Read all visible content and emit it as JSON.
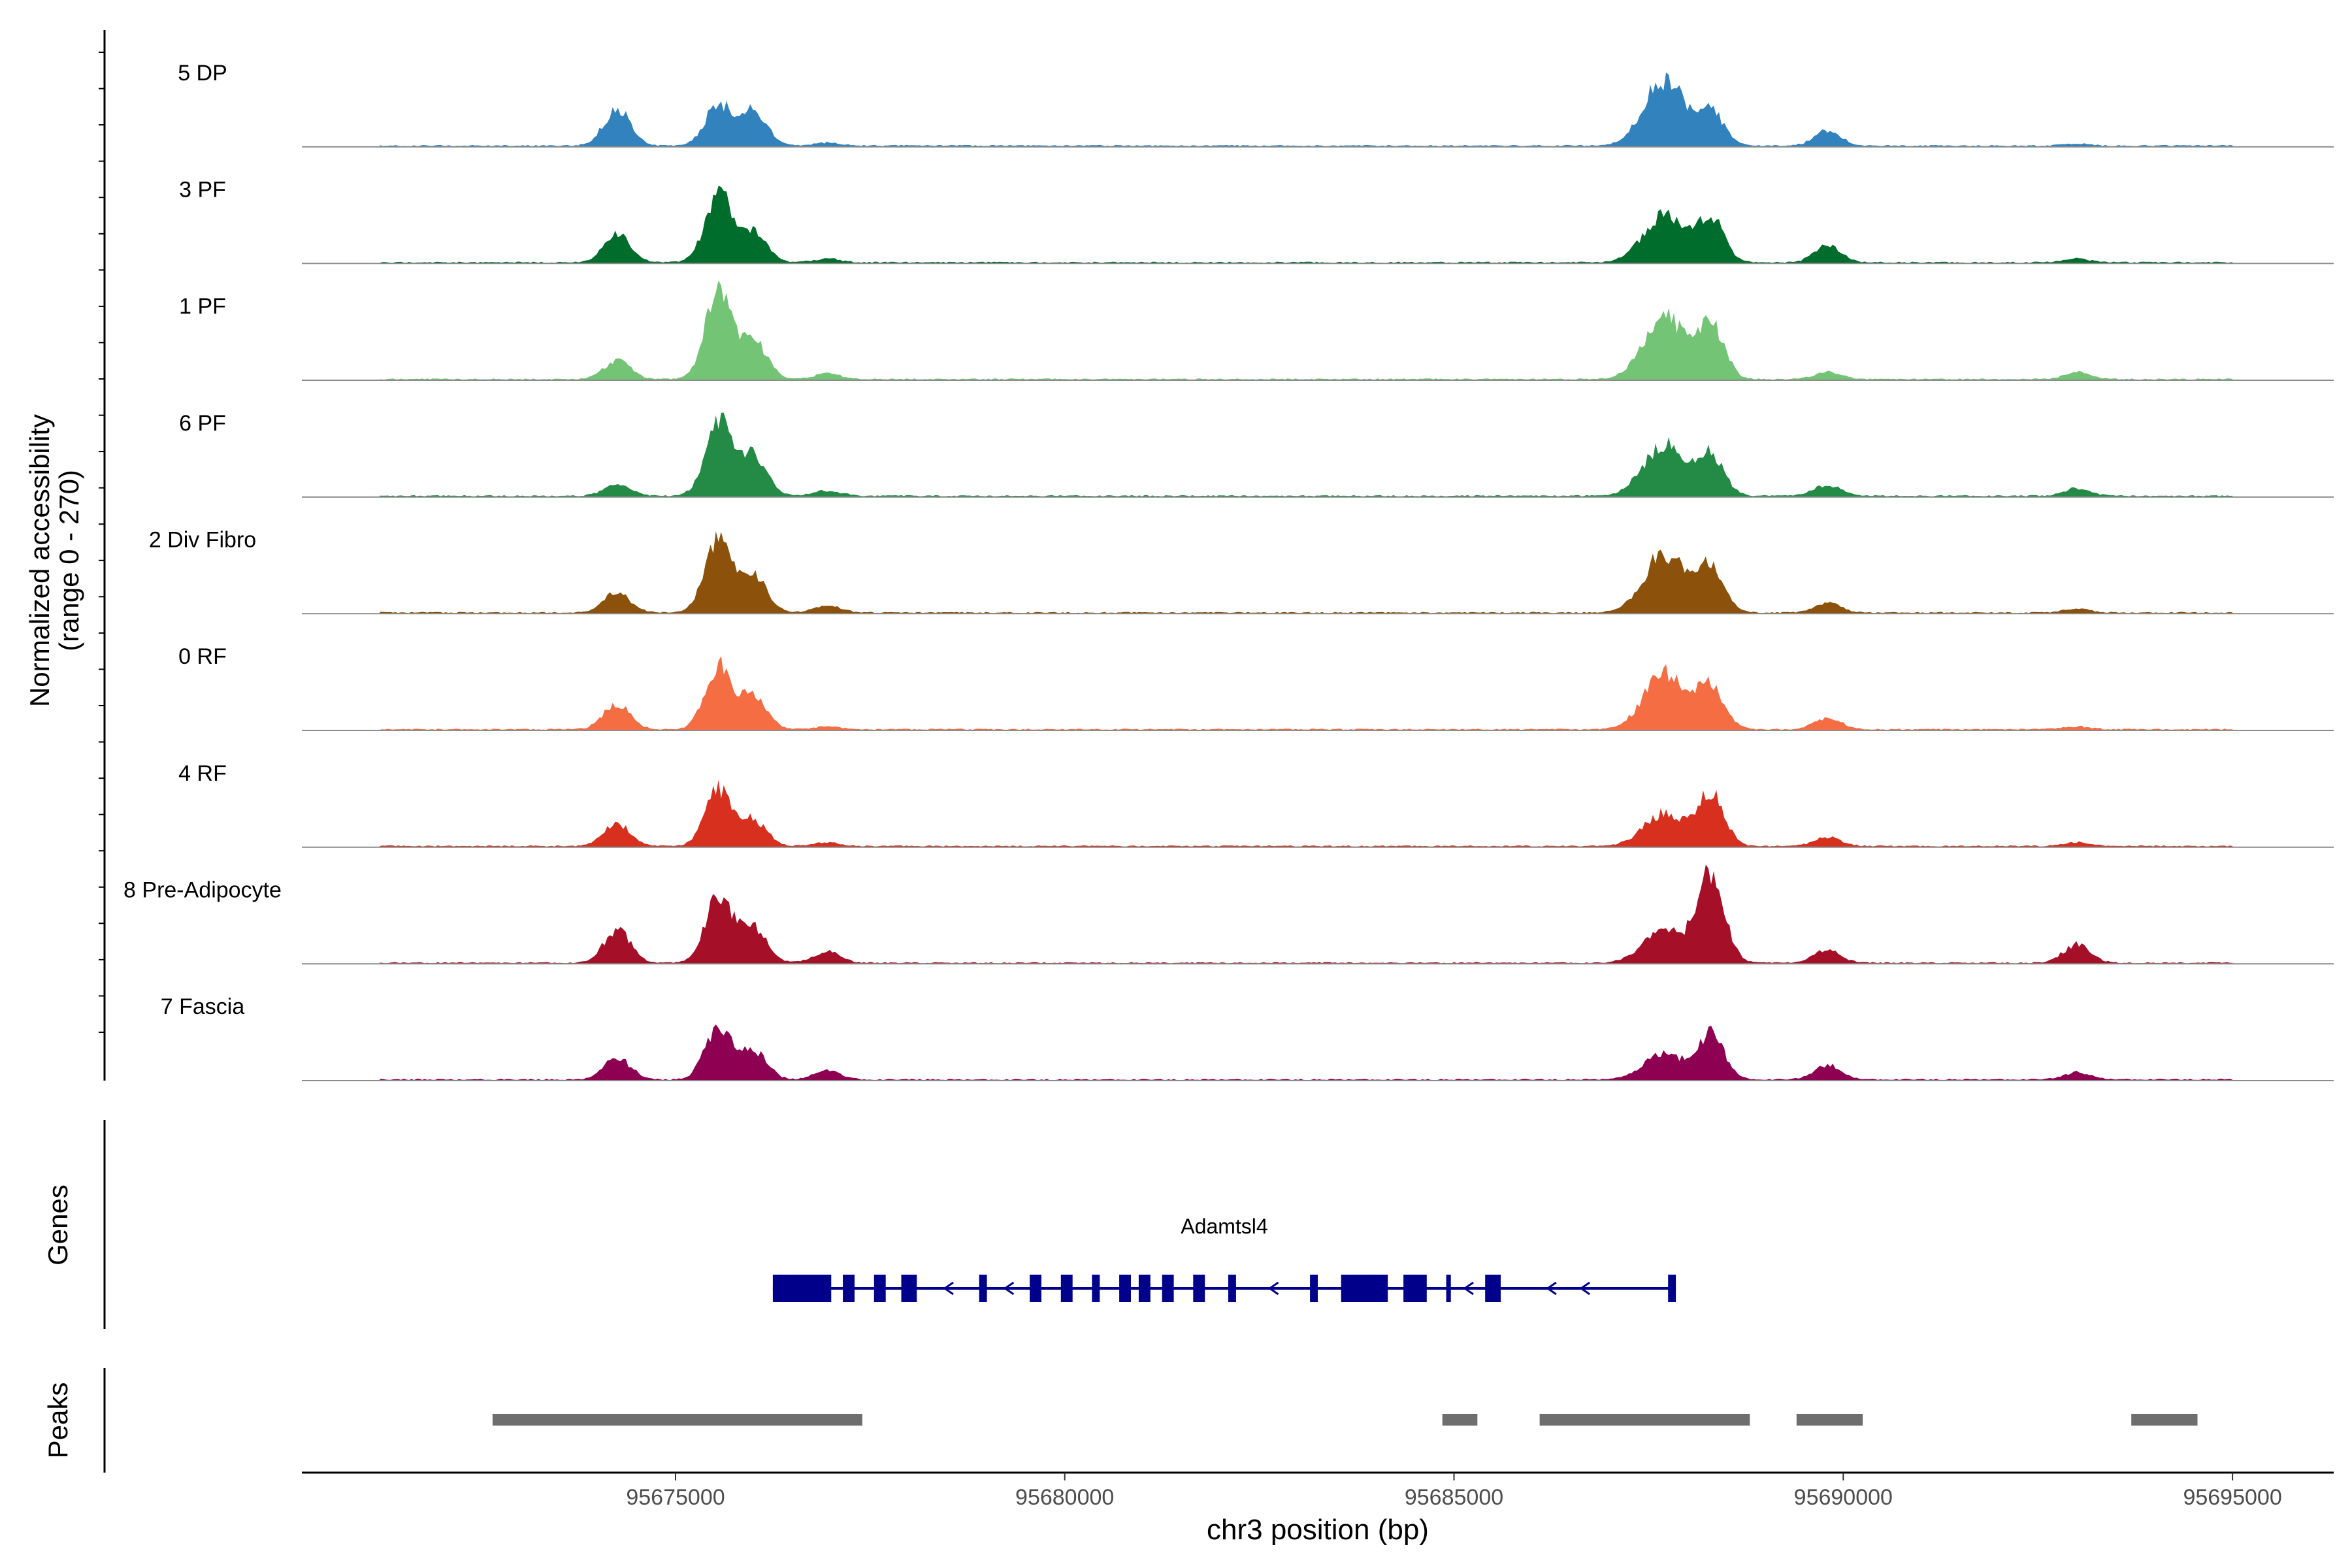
{
  "chart_data": {
    "type": "area",
    "title": "",
    "ylabel_line1": "Normalized accessibility",
    "ylabel_line2": "(range 0 - 270)",
    "yrange": [
      0,
      270
    ],
    "xlabel": "chr3 position (bp)",
    "xlim": [
      95670200,
      95696300
    ],
    "xticks": [
      95675000,
      95680000,
      95685000,
      95690000,
      95695000
    ],
    "xtick_labels": [
      "95675000",
      "95680000",
      "95685000",
      "95690000",
      "95695000"
    ],
    "track_data_range": [
      95671200,
      95695000
    ],
    "peak_centers": [
      95674250,
      95675550,
      95676000,
      95676950,
      95687700,
      95688300,
      95689800,
      95693000
    ],
    "tracks": [
      {
        "name": "5 DP",
        "color": "#3182bd",
        "peak_heights": [
          100,
          110,
          95,
          8,
          180,
          90,
          40,
          5
        ]
      },
      {
        "name": "3 PF",
        "color": "#006d2c",
        "peak_heights": [
          75,
          190,
          80,
          10,
          130,
          120,
          45,
          10
        ]
      },
      {
        "name": "1 PF",
        "color": "#74c476",
        "peak_heights": [
          50,
          230,
          110,
          15,
          170,
          150,
          20,
          18
        ]
      },
      {
        "name": "6 PF",
        "color": "#238b45",
        "peak_heights": [
          30,
          200,
          110,
          15,
          140,
          110,
          30,
          20
        ]
      },
      {
        "name": "2 Div Fibro",
        "color": "#8c510a",
        "peak_heights": [
          55,
          190,
          100,
          20,
          160,
          120,
          25,
          10
        ]
      },
      {
        "name": "0 RF",
        "color": "#f46d43",
        "peak_heights": [
          70,
          170,
          90,
          8,
          150,
          120,
          30,
          8
        ]
      },
      {
        "name": "4 RF",
        "color": "#d7301f",
        "peak_heights": [
          60,
          150,
          70,
          10,
          90,
          140,
          25,
          10
        ]
      },
      {
        "name": "8 Pre-Adipocyte",
        "color": "#a50f28",
        "peak_heights": [
          90,
          180,
          95,
          30,
          90,
          250,
          35,
          50
        ]
      },
      {
        "name": "7 Fascia",
        "color": "#8e0152",
        "peak_heights": [
          60,
          140,
          80,
          25,
          70,
          120,
          40,
          20
        ]
      }
    ],
    "genes_label": "Genes",
    "peaks_label": "Peaks",
    "gene": {
      "name": "Adamtsl4",
      "color": "#00008b",
      "start": 95676250,
      "end": 95687850,
      "strand": "-",
      "exons": [
        [
          95676250,
          95677000
        ],
        [
          95677150,
          95677300
        ],
        [
          95677550,
          95677700
        ],
        [
          95677900,
          95678100
        ],
        [
          95678900,
          95679000
        ],
        [
          95679550,
          95679700
        ],
        [
          95679950,
          95680100
        ],
        [
          95680350,
          95680450
        ],
        [
          95680700,
          95680850
        ],
        [
          95680950,
          95681100
        ],
        [
          95681250,
          95681400
        ],
        [
          95681650,
          95681800
        ],
        [
          95682100,
          95682200
        ],
        [
          95683150,
          95683250
        ],
        [
          95683550,
          95684150
        ],
        [
          95684350,
          95684650
        ],
        [
          95684900,
          95684960
        ],
        [
          95685400,
          95685600
        ],
        [
          95687750,
          95687850
        ]
      ]
    },
    "peaks": [
      [
        95672650,
        95677400
      ],
      [
        95684850,
        95685300
      ],
      [
        95686100,
        95688800
      ],
      [
        95689400,
        95690250
      ],
      [
        95693700,
        95694550
      ]
    ],
    "peak_color": "#6e6e6e"
  }
}
